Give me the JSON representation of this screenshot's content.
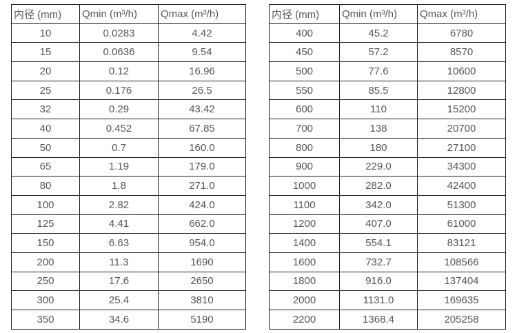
{
  "colors": {
    "background": "#ffffff",
    "border": "#1f1f1f",
    "text": "#54565a"
  },
  "chart_data": [
    {
      "type": "table",
      "title": "",
      "headers": [
        "内径 (mm)",
        "Qmin (m³/h)",
        "Qmax (m³/h)"
      ],
      "rows": [
        [
          "10",
          "0.0283",
          "4.42"
        ],
        [
          "15",
          "0.0636",
          "9.54"
        ],
        [
          "20",
          "0.12",
          "16.96"
        ],
        [
          "25",
          "0.176",
          "26.5"
        ],
        [
          "32",
          "0.29",
          "43.42"
        ],
        [
          "40",
          "0.452",
          "67.85"
        ],
        [
          "50",
          "0.7",
          "160.0"
        ],
        [
          "65",
          "1.19",
          "179.0"
        ],
        [
          "80",
          "1.8",
          "271.0"
        ],
        [
          "100",
          "2.82",
          "424.0"
        ],
        [
          "125",
          "4.41",
          "662.0"
        ],
        [
          "150",
          "6.63",
          "954.0"
        ],
        [
          "200",
          "11.3",
          "1690"
        ],
        [
          "250",
          "17.6",
          "2650"
        ],
        [
          "300",
          "25.4",
          "3810"
        ],
        [
          "350",
          "34.6",
          "5190"
        ]
      ]
    },
    {
      "type": "table",
      "title": "",
      "headers": [
        "内径 (mm)",
        "Qmin (m³/h)",
        "Qmax (m³/h)"
      ],
      "rows": [
        [
          "400",
          "45.2",
          "6780"
        ],
        [
          "450",
          "57.2",
          "8570"
        ],
        [
          "500",
          "77.6",
          "10600"
        ],
        [
          "550",
          "85.5",
          "12800"
        ],
        [
          "600",
          "110",
          "15200"
        ],
        [
          "700",
          "138",
          "20700"
        ],
        [
          "800",
          "180",
          "27100"
        ],
        [
          "900",
          "229.0",
          "34300"
        ],
        [
          "1000",
          "282.0",
          "42400"
        ],
        [
          "1100",
          "342.0",
          "51300"
        ],
        [
          "1200",
          "407.0",
          "61000"
        ],
        [
          "1400",
          "554.1",
          "83121"
        ],
        [
          "1600",
          "732.7",
          "108566"
        ],
        [
          "1800",
          "916.0",
          "137404"
        ],
        [
          "2000",
          "1131.0",
          "169635"
        ],
        [
          "2200",
          "1368.4",
          "205258"
        ]
      ]
    }
  ]
}
